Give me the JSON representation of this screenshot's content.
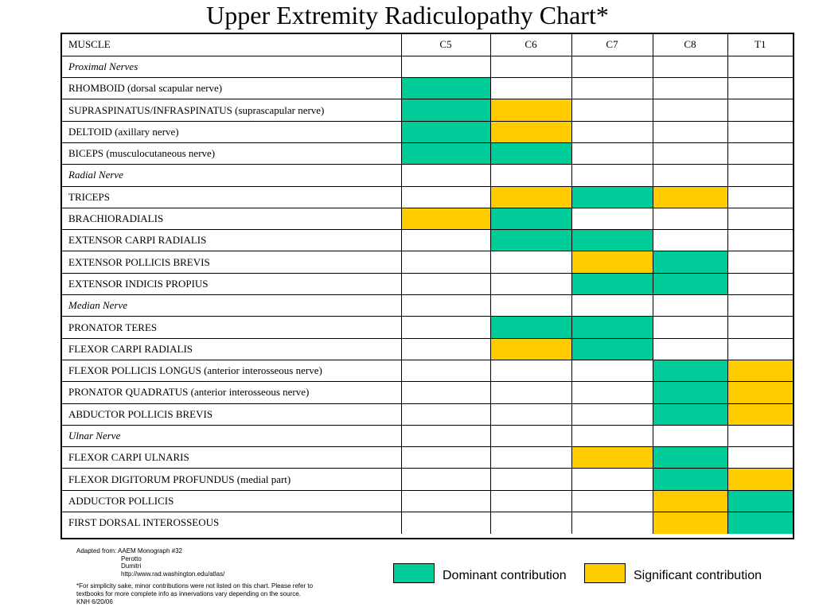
{
  "title": "Upper Extremity Radiculopathy Chart*",
  "colors": {
    "dominant": "#00CC99",
    "significant": "#FFCC00"
  },
  "table": {
    "header": {
      "muscle": "MUSCLE",
      "levels": [
        "C5",
        "C6",
        "C7",
        "C8",
        "T1"
      ]
    },
    "rows": [
      {
        "label": "Proximal Nerves",
        "section": true,
        "cells": [
          "",
          "",
          "",
          "",
          ""
        ]
      },
      {
        "label": "RHOMBOID (dorsal scapular nerve)",
        "cells": [
          "D",
          "",
          "",
          "",
          ""
        ]
      },
      {
        "label": "SUPRASPINATUS/INFRASPINATUS (suprascapular nerve)",
        "cells": [
          "D",
          "S",
          "",
          "",
          ""
        ]
      },
      {
        "label": "DELTOID (axillary nerve)",
        "cells": [
          "D",
          "S",
          "",
          "",
          ""
        ]
      },
      {
        "label": "BICEPS (musculocutaneous nerve)",
        "cells": [
          "D",
          "D",
          "",
          "",
          ""
        ]
      },
      {
        "label": "Radial Nerve",
        "section": true,
        "cells": [
          "",
          "",
          "",
          "",
          ""
        ]
      },
      {
        "label": "TRICEPS",
        "cells": [
          "",
          "S",
          "D",
          "S",
          ""
        ]
      },
      {
        "label": "BRACHIORADIALIS",
        "cells": [
          "S",
          "D",
          "",
          "",
          ""
        ]
      },
      {
        "label": "EXTENSOR CARPI RADIALIS",
        "cells": [
          "",
          "D",
          "D",
          "",
          ""
        ]
      },
      {
        "label": "EXTENSOR POLLICIS BREVIS",
        "cells": [
          "",
          "",
          "S",
          "D",
          ""
        ]
      },
      {
        "label": "EXTENSOR INDICIS PROPIUS",
        "cells": [
          "",
          "",
          "D",
          "D",
          ""
        ]
      },
      {
        "label": "Median Nerve",
        "section": true,
        "cells": [
          "",
          "",
          "",
          "",
          ""
        ]
      },
      {
        "label": "PRONATOR TERES",
        "cells": [
          "",
          "D",
          "D",
          "",
          ""
        ]
      },
      {
        "label": "FLEXOR CARPI RADIALIS",
        "cells": [
          "",
          "S",
          "D",
          "",
          ""
        ]
      },
      {
        "label": "FLEXOR POLLICIS LONGUS (anterior interosseous nerve)",
        "cells": [
          "",
          "",
          "",
          "D",
          "S"
        ]
      },
      {
        "label": "PRONATOR QUADRATUS (anterior interosseous nerve)",
        "cells": [
          "",
          "",
          "",
          "D",
          "S"
        ]
      },
      {
        "label": "ABDUCTOR POLLICIS  BREVIS",
        "cells": [
          "",
          "",
          "",
          "D",
          "S"
        ]
      },
      {
        "label": "Ulnar Nerve",
        "section": true,
        "cells": [
          "",
          "",
          "",
          "",
          ""
        ]
      },
      {
        "label": "FLEXOR CARPI ULNARIS",
        "cells": [
          "",
          "",
          "S",
          "D",
          ""
        ]
      },
      {
        "label": "FLEXOR DIGITORUM PROFUNDUS (medial part)",
        "cells": [
          "",
          "",
          "",
          "D",
          "S"
        ]
      },
      {
        "label": "ADDUCTOR POLLICIS",
        "cells": [
          "",
          "",
          "",
          "S",
          "D"
        ]
      },
      {
        "label": "FIRST DORSAL INTEROSSEOUS",
        "cells": [
          "",
          "",
          "",
          "S",
          "D"
        ]
      }
    ]
  },
  "footnote": {
    "source_lines": [
      "Adapted from: AAEM Monograph #32",
      "Perotto",
      "Dumitri",
      "http://www.rad.washington.edu/atlas/"
    ],
    "note_lines": [
      "*For simplicity sake, minor contributions were not listed on this chart. Please refer to",
      "textbooks for more complete info as innervations vary depending on the source.",
      "KNH 6/20/06"
    ]
  },
  "legend": {
    "dominant_label": "Dominant contribution",
    "significant_label": "Significant contribution"
  }
}
